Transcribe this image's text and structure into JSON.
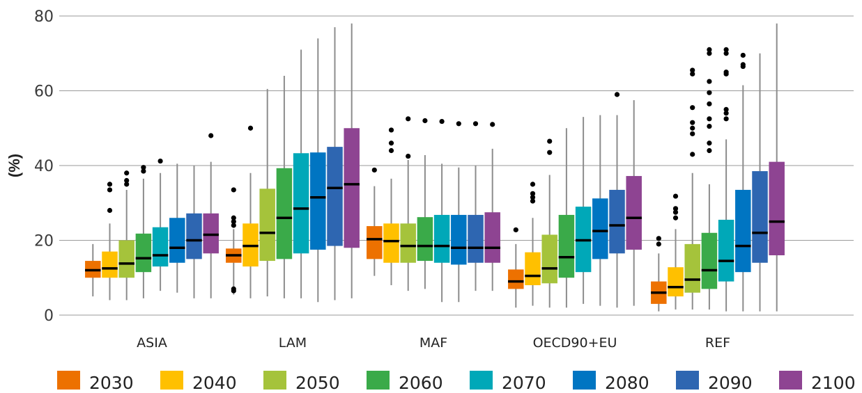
{
  "chart_data": {
    "type": "box",
    "ylabel": "(%)",
    "ylim": [
      0,
      80
    ],
    "yticks": [
      0,
      20,
      40,
      60,
      80
    ],
    "grid": "horizontal",
    "legend_placement": "bottom",
    "categories": [
      "ASIA",
      "LAM",
      "MAF",
      "OECD90+EU",
      "REF"
    ],
    "series": [
      {
        "name": "2030",
        "color": "#ed7100",
        "boxes": [
          {
            "whisker_low": 5.0,
            "q1": 10.0,
            "median": 12.0,
            "q3": 14.5,
            "whisker_high": 19.0,
            "outliers": []
          },
          {
            "whisker_low": 5.5,
            "q1": 14.0,
            "median": 16.0,
            "q3": 17.8,
            "whisker_high": 23.0,
            "outliers": [
              6.5,
              7.0,
              24.0,
              25.0,
              26.0,
              33.5
            ]
          },
          {
            "whisker_low": 10.5,
            "q1": 15.0,
            "median": 20.3,
            "q3": 23.8,
            "whisker_high": 34.5,
            "outliers": [
              38.8
            ]
          },
          {
            "whisker_low": 2.0,
            "q1": 7.0,
            "median": 9.0,
            "q3": 12.2,
            "whisker_high": 19.0,
            "outliers": [
              22.8
            ]
          },
          {
            "whisker_low": 1.0,
            "q1": 3.0,
            "median": 6.0,
            "q3": 9.0,
            "whisker_high": 16.5,
            "outliers": [
              19.0,
              20.5
            ]
          }
        ]
      },
      {
        "name": "2040",
        "color": "#ffc000",
        "boxes": [
          {
            "whisker_low": 4.0,
            "q1": 10.0,
            "median": 12.5,
            "q3": 17.0,
            "whisker_high": 24.5,
            "outliers": [
              28.0,
              33.5,
              35.0
            ]
          },
          {
            "whisker_low": 4.5,
            "q1": 13.0,
            "median": 18.5,
            "q3": 24.5,
            "whisker_high": 38.0,
            "outliers": [
              50.0
            ]
          },
          {
            "whisker_low": 8.0,
            "q1": 14.0,
            "median": 19.8,
            "q3": 24.5,
            "whisker_high": 36.5,
            "outliers": [
              44.0,
              46.0,
              49.5
            ]
          },
          {
            "whisker_low": 2.5,
            "q1": 8.0,
            "median": 10.5,
            "q3": 16.8,
            "whisker_high": 26.0,
            "outliers": [
              30.5,
              31.5,
              32.5,
              35.0
            ]
          },
          {
            "whisker_low": 1.5,
            "q1": 5.0,
            "median": 7.5,
            "q3": 12.8,
            "whisker_high": 23.0,
            "outliers": [
              26.0,
              27.5,
              28.5,
              31.8
            ]
          }
        ]
      },
      {
        "name": "2050",
        "color": "#a5c33b",
        "boxes": [
          {
            "whisker_low": 4.0,
            "q1": 10.0,
            "median": 13.8,
            "q3": 20.0,
            "whisker_high": 33.5,
            "outliers": [
              35.0,
              36.0,
              38.0
            ]
          },
          {
            "whisker_low": 5.0,
            "q1": 14.5,
            "median": 22.0,
            "q3": 33.8,
            "whisker_high": 60.5,
            "outliers": []
          },
          {
            "whisker_low": 6.5,
            "q1": 14.0,
            "median": 18.5,
            "q3": 24.5,
            "whisker_high": 41.5,
            "outliers": [
              42.5,
              52.5
            ]
          },
          {
            "whisker_low": 2.0,
            "q1": 8.5,
            "median": 12.5,
            "q3": 21.5,
            "whisker_high": 37.5,
            "outliers": [
              43.5,
              46.5
            ]
          },
          {
            "whisker_low": 1.5,
            "q1": 6.0,
            "median": 9.5,
            "q3": 19.0,
            "whisker_high": 38.0,
            "outliers": [
              43.0,
              48.5,
              50.0,
              51.5,
              55.5,
              64.5,
              65.5
            ]
          }
        ]
      },
      {
        "name": "2060",
        "color": "#3aaa49",
        "boxes": [
          {
            "whisker_low": 4.5,
            "q1": 11.5,
            "median": 15.2,
            "q3": 21.8,
            "whisker_high": 36.5,
            "outliers": [
              38.5,
              39.5
            ]
          },
          {
            "whisker_low": 4.5,
            "q1": 15.0,
            "median": 26.0,
            "q3": 39.3,
            "whisker_high": 64.0,
            "outliers": []
          },
          {
            "whisker_low": 7.0,
            "q1": 14.5,
            "median": 18.5,
            "q3": 26.2,
            "whisker_high": 42.8,
            "outliers": [
              52.0
            ]
          },
          {
            "whisker_low": 2.0,
            "q1": 10.0,
            "median": 15.5,
            "q3": 26.8,
            "whisker_high": 50.0,
            "outliers": []
          },
          {
            "whisker_low": 1.5,
            "q1": 7.0,
            "median": 12.0,
            "q3": 22.0,
            "whisker_high": 35.0,
            "outliers": [
              44.0,
              46.0,
              50.5,
              52.5,
              56.5,
              59.5,
              62.5,
              70.0,
              71.0
            ]
          }
        ]
      },
      {
        "name": "2070",
        "color": "#00a8b8",
        "boxes": [
          {
            "whisker_low": 6.5,
            "q1": 13.0,
            "median": 16.0,
            "q3": 23.5,
            "whisker_high": 38.0,
            "outliers": [
              41.2
            ]
          },
          {
            "whisker_low": 4.5,
            "q1": 16.5,
            "median": 28.5,
            "q3": 43.3,
            "whisker_high": 71.0,
            "outliers": []
          },
          {
            "whisker_low": 3.5,
            "q1": 14.0,
            "median": 18.5,
            "q3": 26.8,
            "whisker_high": 40.5,
            "outliers": [
              51.8
            ]
          },
          {
            "whisker_low": 3.0,
            "q1": 11.5,
            "median": 20.0,
            "q3": 29.0,
            "whisker_high": 53.0,
            "outliers": []
          },
          {
            "whisker_low": 1.0,
            "q1": 9.0,
            "median": 14.5,
            "q3": 25.5,
            "whisker_high": 47.0,
            "outliers": [
              52.5,
              54.0,
              55.0,
              64.5,
              65.0,
              70.0,
              71.0
            ]
          }
        ]
      },
      {
        "name": "2080",
        "color": "#0075c2",
        "boxes": [
          {
            "whisker_low": 6.0,
            "q1": 14.0,
            "median": 18.0,
            "q3": 26.0,
            "whisker_high": 40.5,
            "outliers": []
          },
          {
            "whisker_low": 3.5,
            "q1": 17.5,
            "median": 31.5,
            "q3": 43.5,
            "whisker_high": 74.0,
            "outliers": []
          },
          {
            "whisker_low": 3.5,
            "q1": 13.5,
            "median": 18.0,
            "q3": 26.8,
            "whisker_high": 39.5,
            "outliers": [
              51.2
            ]
          },
          {
            "whisker_low": 2.5,
            "q1": 15.0,
            "median": 22.5,
            "q3": 31.2,
            "whisker_high": 53.5,
            "outliers": []
          },
          {
            "whisker_low": 1.0,
            "q1": 11.5,
            "median": 18.5,
            "q3": 33.5,
            "whisker_high": 61.5,
            "outliers": [
              66.5,
              67.0,
              69.5
            ]
          }
        ]
      },
      {
        "name": "2090",
        "color": "#2e66b1",
        "boxes": [
          {
            "whisker_low": 4.5,
            "q1": 15.0,
            "median": 20.0,
            "q3": 27.2,
            "whisker_high": 40.0,
            "outliers": []
          },
          {
            "whisker_low": 4.0,
            "q1": 18.5,
            "median": 34.0,
            "q3": 45.0,
            "whisker_high": 77.0,
            "outliers": []
          },
          {
            "whisker_low": 6.5,
            "q1": 14.0,
            "median": 18.0,
            "q3": 26.8,
            "whisker_high": 40.0,
            "outliers": [
              51.2
            ]
          },
          {
            "whisker_low": 2.0,
            "q1": 16.5,
            "median": 24.0,
            "q3": 33.5,
            "whisker_high": 53.5,
            "outliers": [
              59.0
            ]
          },
          {
            "whisker_low": 1.0,
            "q1": 14.0,
            "median": 22.0,
            "q3": 38.5,
            "whisker_high": 70.0,
            "outliers": []
          }
        ]
      },
      {
        "name": "2100",
        "color": "#8e4492",
        "boxes": [
          {
            "whisker_low": 4.5,
            "q1": 16.5,
            "median": 21.5,
            "q3": 27.2,
            "whisker_high": 41.0,
            "outliers": [
              48.0
            ]
          },
          {
            "whisker_low": 4.5,
            "q1": 18.0,
            "median": 35.0,
            "q3": 50.0,
            "whisker_high": 78.0,
            "outliers": []
          },
          {
            "whisker_low": 6.5,
            "q1": 14.0,
            "median": 18.0,
            "q3": 27.5,
            "whisker_high": 44.5,
            "outliers": [
              51.0
            ]
          },
          {
            "whisker_low": 2.5,
            "q1": 17.5,
            "median": 26.0,
            "q3": 37.2,
            "whisker_high": 57.5,
            "outliers": []
          },
          {
            "whisker_low": 1.0,
            "q1": 16.0,
            "median": 25.0,
            "q3": 41.0,
            "whisker_high": 78.0,
            "outliers": []
          }
        ]
      }
    ]
  }
}
